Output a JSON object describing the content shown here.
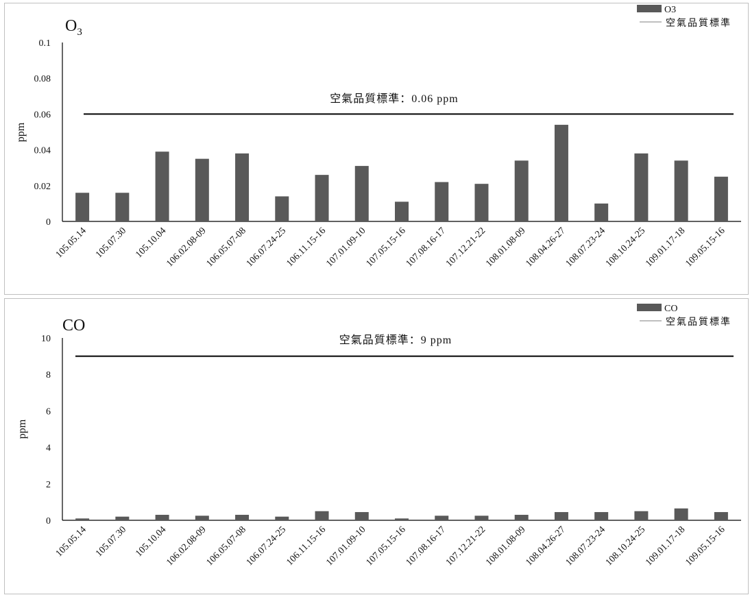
{
  "colors": {
    "bar": "#595959",
    "standard_line": "#000000",
    "axis": "#000000",
    "legend_line": "#bfbfbf"
  },
  "chart_data": [
    {
      "type": "bar",
      "title": "O3",
      "title_main": "O",
      "title_sub": "3",
      "ylabel": "ppm",
      "xlabel": "",
      "ylim": [
        0,
        0.1
      ],
      "yticks": [
        "0",
        "0.02",
        "0.04",
        "0.06",
        "0.08",
        "0.1"
      ],
      "ytick_values": [
        0,
        0.02,
        0.04,
        0.06,
        0.08,
        0.1
      ],
      "categories": [
        "105.05.14",
        "105.07.30",
        "105.10.04",
        "106.02.08-09",
        "106.05.07-08",
        "106.07.24-25",
        "106.11.15-16",
        "107.01.09-10",
        "107.05.15-16",
        "107.08.16-17",
        "107.12.21-22",
        "108.01.08-09",
        "108.04.26-27",
        "108.07.23-24",
        "108.10.24-25",
        "109.01.17-18",
        "109.05.15-16"
      ],
      "series": [
        {
          "name": "O3",
          "kind": "bar",
          "values": [
            0.016,
            0.016,
            0.039,
            0.035,
            0.038,
            0.014,
            0.026,
            0.031,
            0.011,
            0.022,
            0.021,
            0.034,
            0.054,
            0.01,
            0.038,
            0.034,
            0.025
          ]
        },
        {
          "name": "空氣品質標準",
          "kind": "line",
          "values": [
            0.06,
            0.06,
            0.06,
            0.06,
            0.06,
            0.06,
            0.06,
            0.06,
            0.06,
            0.06,
            0.06,
            0.06,
            0.06,
            0.06,
            0.06,
            0.06,
            0.06
          ]
        }
      ],
      "annotation": "空氣品質標準：0.06 ppm",
      "legend": [
        "O3",
        "空氣品質標準"
      ],
      "legend_position": "top-right",
      "grid": false
    },
    {
      "type": "bar",
      "title": "CO",
      "ylabel": "ppm",
      "xlabel": "",
      "ylim": [
        0,
        10
      ],
      "yticks": [
        "0",
        "2",
        "4",
        "6",
        "8",
        "10"
      ],
      "ytick_values": [
        0,
        2,
        4,
        6,
        8,
        10
      ],
      "categories": [
        "105.05.14",
        "105.07.30",
        "105.10.04",
        "106.02.08-09",
        "106.05.07-08",
        "106.07.24-25",
        "106.11.15-16",
        "107.01.09-10",
        "107.05.15-16",
        "107.08.16-17",
        "107.12.21-22",
        "108.01.08-09",
        "108.04.26-27",
        "108.07.23-24",
        "108.10.24-25",
        "109.01.17-18",
        "109.05.15-16"
      ],
      "series": [
        {
          "name": "CO",
          "kind": "bar",
          "values": [
            0.1,
            0.2,
            0.3,
            0.25,
            0.3,
            0.2,
            0.5,
            0.45,
            0.1,
            0.25,
            0.25,
            0.3,
            0.45,
            0.45,
            0.5,
            0.65,
            0.45
          ]
        },
        {
          "name": "空氣品質標準",
          "kind": "line",
          "values": [
            9,
            9,
            9,
            9,
            9,
            9,
            9,
            9,
            9,
            9,
            9,
            9,
            9,
            9,
            9,
            9,
            9
          ]
        }
      ],
      "annotation": "空氣品質標準：9 ppm",
      "legend": [
        "CO",
        "空氣品質標準"
      ],
      "legend_position": "top-right",
      "grid": false
    }
  ]
}
